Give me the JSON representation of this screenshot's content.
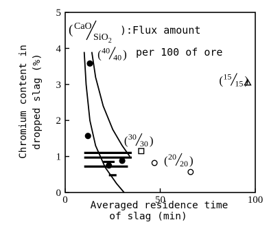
{
  "chart_data": {
    "type": "scatter",
    "title": "",
    "xlabel_line1": "Averaged residence time",
    "xlabel_line2": "of slag (min)",
    "ylabel_line1": "Chromium content in",
    "ylabel_line2": "dropped slag (%)",
    "xlim": [
      0,
      100
    ],
    "ylim": [
      0,
      5
    ],
    "xticks": [
      "0",
      "50",
      "100"
    ],
    "yticks": [
      "0",
      "1",
      "2",
      "3",
      "4",
      "5"
    ],
    "legend_note": {
      "prefix": "(",
      "num": "CaO",
      "den": "SiO",
      "den_sub": "2",
      "suffix": "):Flux amount",
      "line2": "per 100 of ore"
    },
    "series": [
      {
        "name": "40/40",
        "marker": "filled-circle",
        "points": [
          [
            13,
            3.58
          ],
          [
            12,
            1.57
          ],
          [
            23,
            0.75
          ],
          [
            30,
            0.88
          ]
        ]
      },
      {
        "name": "30/30",
        "marker": "open-square",
        "points": [
          [
            40,
            1.15
          ]
        ]
      },
      {
        "name": "20/20",
        "marker": "open-circle",
        "points": [
          [
            47,
            0.82
          ],
          [
            66,
            0.57
          ]
        ]
      },
      {
        "name": "15/15",
        "marker": "open-triangle",
        "points": [
          [
            96,
            3.05
          ]
        ]
      }
    ],
    "group_labels": [
      {
        "num": "40",
        "den": "40",
        "x": 17,
        "y": 3.85
      },
      {
        "num": "30",
        "den": "30",
        "x": 31,
        "y": 1.45
      },
      {
        "num": "20",
        "den": "20",
        "x": 52,
        "y": 0.9
      },
      {
        "num": "15",
        "den": "15",
        "x": 81,
        "y": 3.12
      }
    ],
    "boundary_curves": [
      [
        [
          10,
          3.9
        ],
        [
          11,
          3.0
        ],
        [
          13,
          2.0
        ],
        [
          16,
          1.3
        ],
        [
          21,
          0.7
        ],
        [
          27,
          0.25
        ],
        [
          31,
          0.0
        ]
      ],
      [
        [
          14,
          3.9
        ],
        [
          16,
          3.2
        ],
        [
          20,
          2.4
        ],
        [
          25,
          1.75
        ],
        [
          30,
          1.3
        ],
        [
          34,
          1.0
        ]
      ]
    ],
    "range_bars": [
      {
        "y": 1.1,
        "x1": 10,
        "x2": 35
      },
      {
        "y": 0.97,
        "x1": 10,
        "x2": 35
      },
      {
        "y": 0.72,
        "x1": 10,
        "x2": 33
      }
    ],
    "small_marks": [
      {
        "x": 22,
        "y": 0.85,
        "x1": 20,
        "x2": 26
      },
      {
        "x": 25,
        "y": 0.48,
        "x1": 23,
        "x2": 27
      }
    ]
  }
}
